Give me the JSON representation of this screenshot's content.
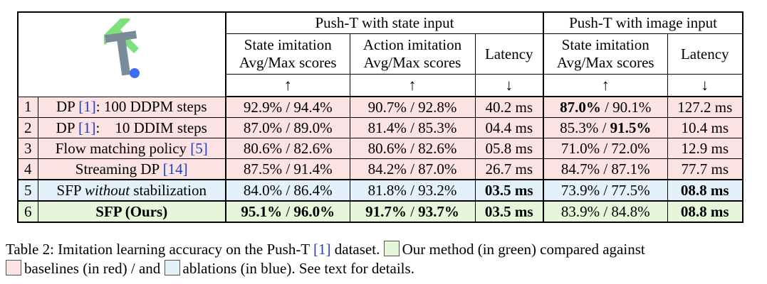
{
  "table": {
    "group_headers": [
      "Push-T with state input",
      "Push-T with image input"
    ],
    "col_headers": {
      "state_sim_line1": "State imitation",
      "state_sim_line2": "Avg/Max scores",
      "state_act_line1": "Action imitation",
      "state_act_line2": "Avg/Max scores",
      "state_lat": "Latency",
      "img_sim_line1": "State imitation",
      "img_sim_line2": "Avg/Max scores",
      "img_lat": "Latency"
    },
    "arrows": {
      "up": "↑",
      "down": "↓"
    },
    "colors": {
      "baseline": "#fbe3e3",
      "ablation": "#e2f1fa",
      "ours": "#e5f6db",
      "ref": "#1f3fbf"
    },
    "logo_icon": "push-t-block-icon",
    "rows": [
      {
        "idx": "1",
        "m1": "DP ",
        "ref": "[1]",
        "m2": ":  100 DDPM steps",
        "s_avg": "92.9%",
        "s_max": "94.4%",
        "a_avg": "90.7%",
        "a_max": "92.8%",
        "lat": "40.2 ms",
        "i_avg": "87.0%",
        "i_max": "90.1%",
        "i_lat": "127.2 ms"
      },
      {
        "idx": "2",
        "m1": "DP ",
        "ref": "[1]",
        "m2": ":    10 DDIM steps",
        "s_avg": "87.0%",
        "s_max": "89.0%",
        "a_avg": "81.4%",
        "a_max": "85.3%",
        "lat": "04.4 ms",
        "i_avg": "85.3%",
        "i_max": "91.5%",
        "i_lat": "10.4 ms"
      },
      {
        "idx": "3",
        "m1": "Flow matching policy ",
        "ref": "[5]",
        "m2": "",
        "s_avg": "80.6%",
        "s_max": "82.6%",
        "a_avg": "80.6%",
        "a_max": "82.6%",
        "lat": "05.8 ms",
        "i_avg": "71.0%",
        "i_max": "72.0%",
        "i_lat": "12.9 ms"
      },
      {
        "idx": "4",
        "m1": "Streaming DP ",
        "ref": "[14]",
        "m2": "",
        "s_avg": "87.5%",
        "s_max": "91.4%",
        "a_avg": "84.2%",
        "a_max": "87.0%",
        "lat": "26.7 ms",
        "i_avg": "84.7%",
        "i_max": "87.1%",
        "i_lat": "77.7 ms"
      },
      {
        "idx": "5",
        "m1": "SFP ",
        "m_it": "without",
        "m2": " stabilization",
        "s_avg": "84.0%",
        "s_max": "86.4%",
        "a_avg": "81.8%",
        "a_max": "93.2%",
        "lat": "03.5 ms",
        "i_avg": "73.9%",
        "i_max": "77.5%",
        "i_lat": "08.8 ms"
      },
      {
        "idx": "6",
        "m1": "SFP (Ours)",
        "s_avg": "95.1%",
        "s_max": "96.0%",
        "a_avg": "91.7%",
        "a_max": "93.7%",
        "lat": "03.5 ms",
        "i_avg": "83.9%",
        "i_max": "84.8%",
        "i_lat": "08.8 ms"
      }
    ],
    "sep": " / "
  },
  "caption": {
    "part1": "Table 2: Imitation learning accuracy on the Push-T ",
    "ref": "[1]",
    "part2": " dataset. ",
    "green_text": "Our method (in green) compared against",
    "red_text": "baselines (in red) / and ",
    "blue_text": "ablations (in blue). See text for details."
  }
}
